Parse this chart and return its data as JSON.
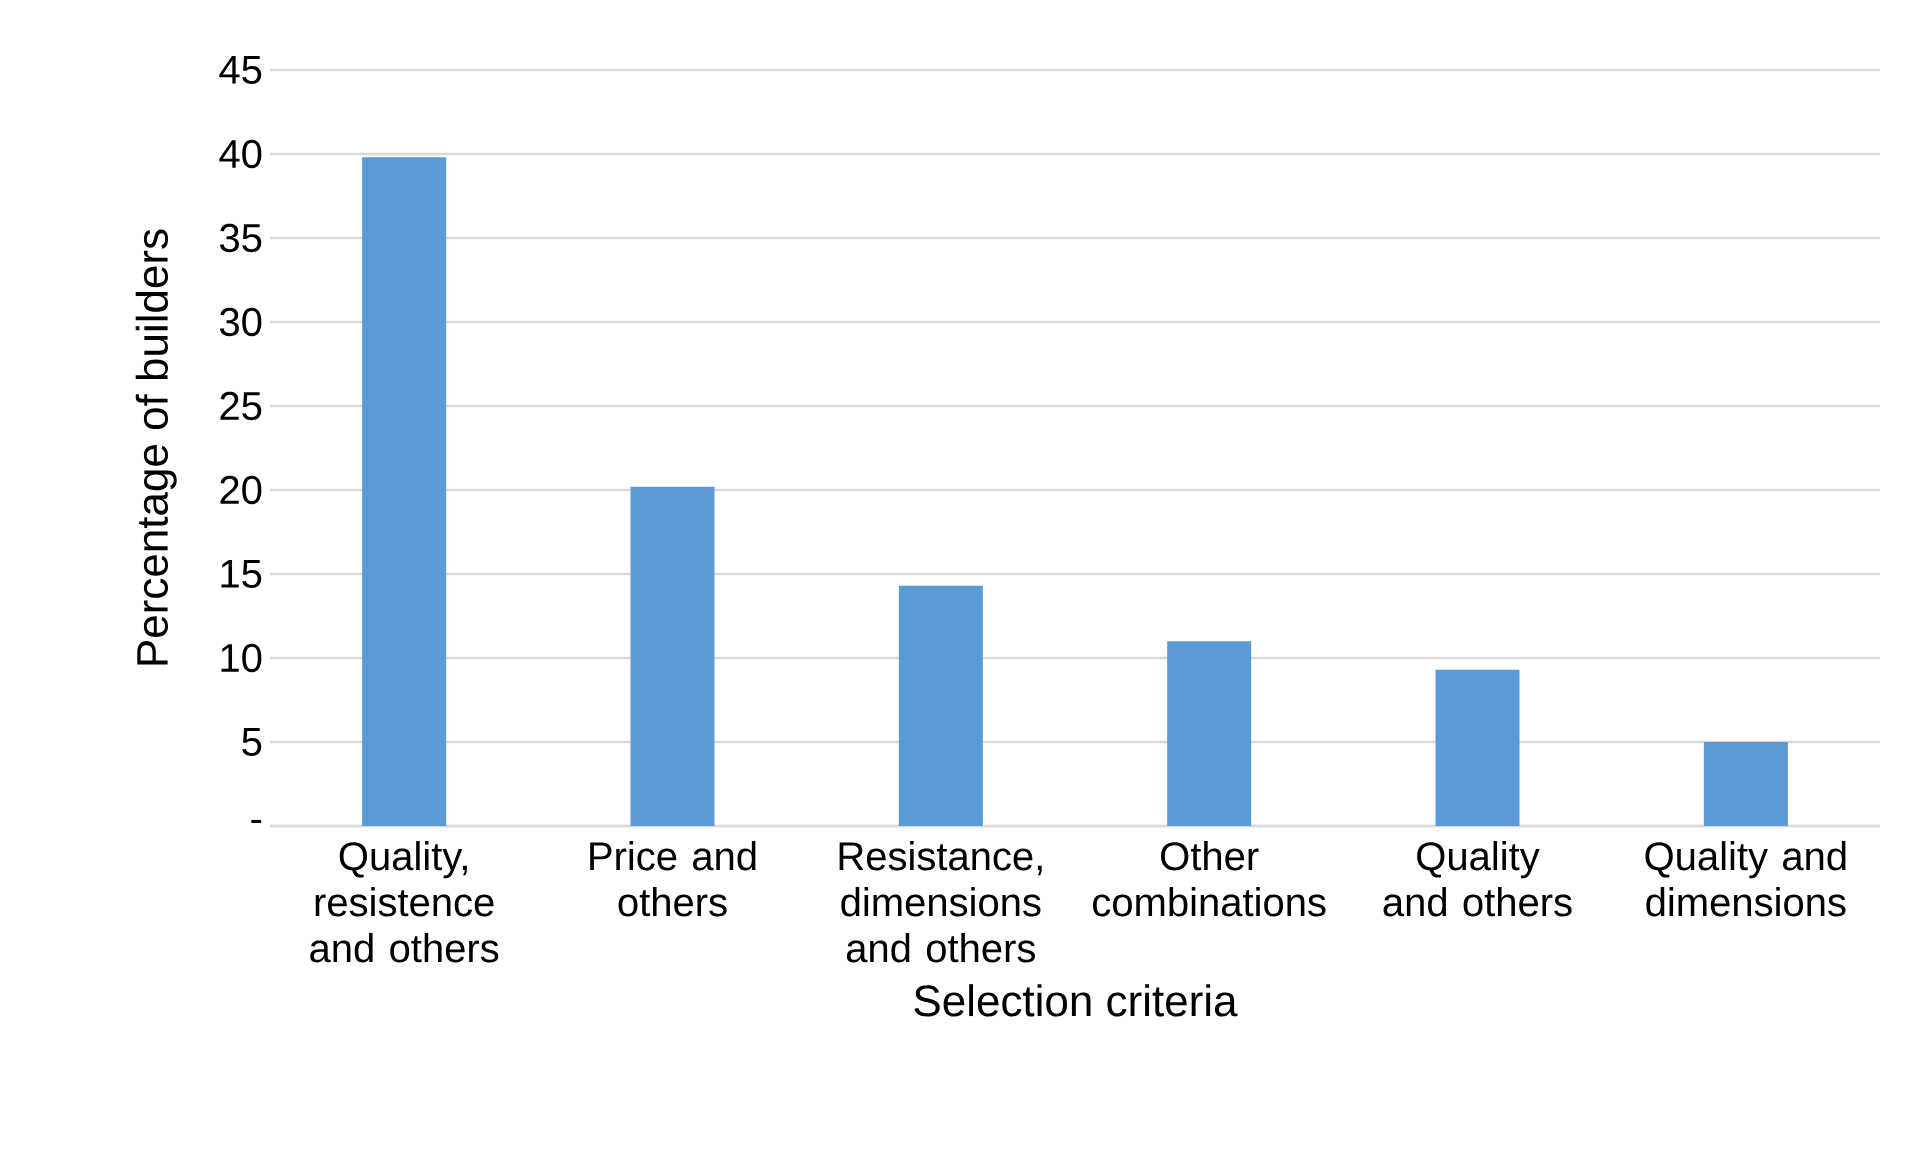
{
  "chart_data": {
    "type": "bar",
    "xlabel": "Selection criteria",
    "ylabel": "Percentage of builders",
    "categories": [
      "Quality, resistence and others",
      "Price and others",
      "Resistance, dimensions and others",
      "Other combinations",
      "Quality and others",
      "Quality and dimensions"
    ],
    "values": [
      39.8,
      20.2,
      14.3,
      11.0,
      9.3,
      5.0
    ],
    "color": "#5b9bd5",
    "ylim": [
      0,
      45
    ],
    "yticks": [
      {
        "value": 0,
        "label": "-"
      },
      5,
      10,
      15,
      20,
      25,
      30,
      35,
      40,
      45
    ],
    "grid": "y"
  }
}
